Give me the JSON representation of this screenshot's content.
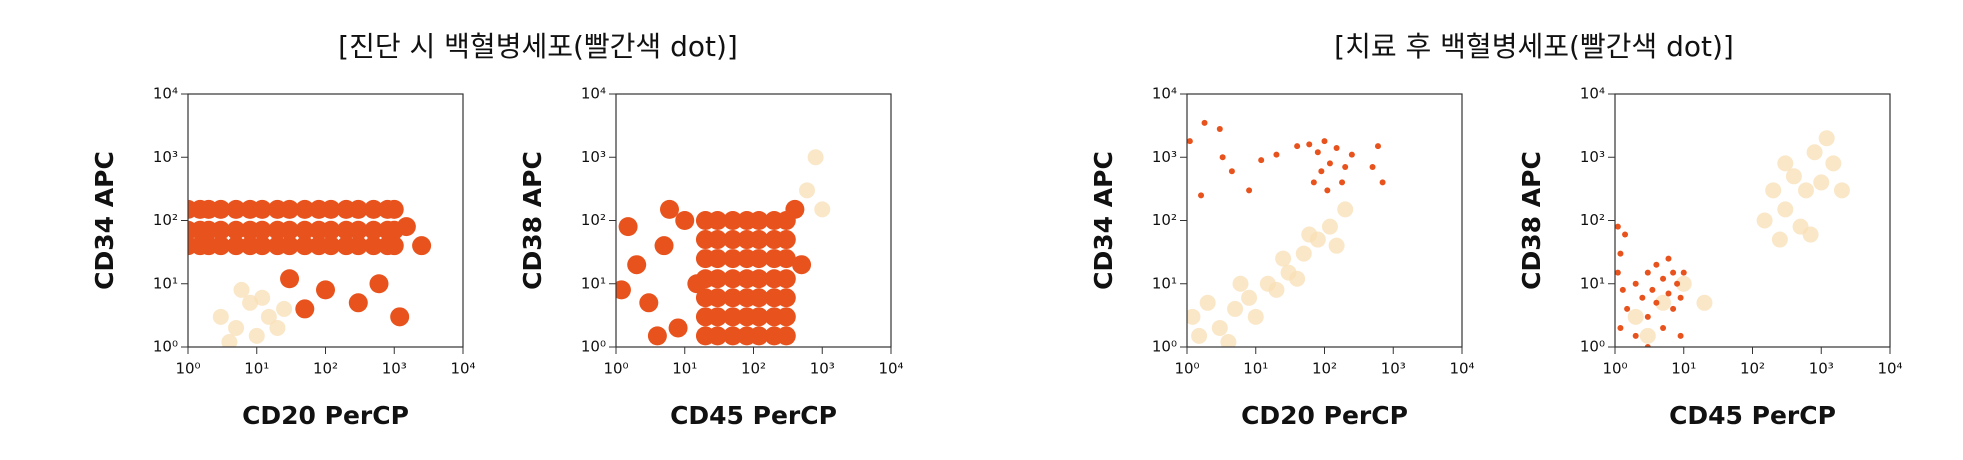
{
  "headings": [
    "[진단 시 백혈병세포(빨간색 dot)]",
    "[치료 후 백혈병세포(빨간색 dot)]"
  ],
  "chart_data": [
    {
      "type": "scatter",
      "xlabel": "CD20 PerCP",
      "ylabel": "CD34 APC",
      "xscale": "log",
      "yscale": "log",
      "xlim": [
        1,
        10000
      ],
      "ylim": [
        1,
        10000
      ],
      "xticks": [
        {
          "value": 1,
          "label": "10⁰"
        },
        {
          "value": 10,
          "label": "10¹"
        },
        {
          "value": 100,
          "label": "10²"
        },
        {
          "value": 1000,
          "label": "10³"
        },
        {
          "value": 10000,
          "label": "10⁴"
        }
      ],
      "yticks": [
        {
          "value": 1,
          "label": "10⁰"
        },
        {
          "value": 10,
          "label": "10¹"
        },
        {
          "value": 100,
          "label": "10²"
        },
        {
          "value": 1000,
          "label": "10³"
        },
        {
          "value": 10000,
          "label": "10⁴"
        }
      ],
      "series": [
        {
          "color": "#f8dfb5",
          "x": [
            3,
            5,
            8,
            10,
            15,
            6,
            20,
            4,
            12,
            25
          ],
          "values": [
            3,
            2,
            5,
            1.5,
            3,
            8,
            2,
            1.2,
            6,
            4
          ]
        },
        {
          "color": "#e8521c",
          "x": [
            1,
            1.5,
            2,
            3,
            5,
            8,
            12,
            20,
            30,
            50,
            80,
            120,
            200,
            300,
            500,
            800,
            1000,
            1,
            1.5,
            2,
            3,
            5,
            8,
            12,
            20,
            30,
            50,
            80,
            120,
            200,
            300,
            500,
            800,
            1000,
            1,
            1.5,
            2,
            3,
            5,
            8,
            12,
            20,
            30,
            50,
            80,
            120,
            200,
            300,
            500,
            800,
            1000,
            1500,
            2500,
            600,
            300,
            100,
            30,
            1200,
            50
          ],
          "values": [
            40,
            40,
            40,
            40,
            40,
            40,
            40,
            40,
            40,
            40,
            40,
            40,
            40,
            40,
            40,
            40,
            40,
            70,
            70,
            70,
            70,
            70,
            70,
            70,
            70,
            70,
            70,
            70,
            70,
            70,
            70,
            70,
            70,
            70,
            150,
            150,
            150,
            150,
            150,
            150,
            150,
            150,
            150,
            150,
            150,
            150,
            150,
            150,
            150,
            150,
            150,
            80,
            40,
            10,
            5,
            8,
            12,
            3,
            4
          ]
        }
      ]
    },
    {
      "type": "scatter",
      "xlabel": "CD45 PerCP",
      "ylabel": "CD38 APC",
      "xscale": "log",
      "yscale": "log",
      "xlim": [
        1,
        10000
      ],
      "ylim": [
        1,
        10000
      ],
      "xticks": [
        {
          "value": 1,
          "label": "10⁰"
        },
        {
          "value": 10,
          "label": "10¹"
        },
        {
          "value": 100,
          "label": "10²"
        },
        {
          "value": 1000,
          "label": "10³"
        },
        {
          "value": 10000,
          "label": "10⁴"
        }
      ],
      "yticks": [
        {
          "value": 1,
          "label": "10⁰"
        },
        {
          "value": 10,
          "label": "10¹"
        },
        {
          "value": 100,
          "label": "10²"
        },
        {
          "value": 1000,
          "label": "10³"
        },
        {
          "value": 10000,
          "label": "10⁴"
        }
      ],
      "series": [
        {
          "color": "#f8dfb5",
          "x": [
            600,
            800,
            1000
          ],
          "values": [
            300,
            1000,
            150
          ]
        },
        {
          "color": "#e8521c",
          "x": [
            20,
            30,
            50,
            80,
            120,
            200,
            300,
            20,
            30,
            50,
            80,
            120,
            200,
            300,
            20,
            30,
            50,
            80,
            120,
            200,
            300,
            20,
            30,
            50,
            80,
            120,
            200,
            300,
            20,
            30,
            50,
            80,
            120,
            200,
            300,
            20,
            30,
            50,
            80,
            120,
            200,
            300,
            20,
            30,
            50,
            80,
            120,
            200,
            300,
            1.5,
            2,
            3,
            5,
            8,
            10,
            15,
            4,
            1.2,
            6,
            400,
            500
          ],
          "values": [
            1.5,
            1.5,
            1.5,
            1.5,
            1.5,
            1.5,
            1.5,
            3,
            3,
            3,
            3,
            3,
            3,
            3,
            6,
            6,
            6,
            6,
            6,
            6,
            6,
            12,
            12,
            12,
            12,
            12,
            12,
            12,
            25,
            25,
            25,
            25,
            25,
            25,
            25,
            50,
            50,
            50,
            50,
            50,
            50,
            50,
            100,
            100,
            100,
            100,
            100,
            100,
            100,
            80,
            20,
            5,
            40,
            2,
            100,
            10,
            1.5,
            8,
            150,
            150,
            20
          ]
        }
      ]
    },
    {
      "type": "scatter",
      "xlabel": "CD20 PerCP",
      "ylabel": "CD34 APC",
      "xscale": "log",
      "yscale": "log",
      "xlim": [
        1,
        10000
      ],
      "ylim": [
        1,
        10000
      ],
      "xticks": [
        {
          "value": 1,
          "label": "10⁰"
        },
        {
          "value": 10,
          "label": "10¹"
        },
        {
          "value": 100,
          "label": "10²"
        },
        {
          "value": 1000,
          "label": "10³"
        },
        {
          "value": 10000,
          "label": "10⁴"
        }
      ],
      "yticks": [
        {
          "value": 1,
          "label": "10⁰"
        },
        {
          "value": 10,
          "label": "10¹"
        },
        {
          "value": 100,
          "label": "10²"
        },
        {
          "value": 1000,
          "label": "10³"
        },
        {
          "value": 10000,
          "label": "10⁴"
        }
      ],
      "series": [
        {
          "color": "#f8dfb5",
          "x": [
            1.5,
            3,
            5,
            8,
            10,
            15,
            20,
            30,
            50,
            80,
            120,
            200,
            2,
            1.2,
            4,
            25,
            40,
            6,
            60,
            150
          ],
          "values": [
            1.5,
            2,
            4,
            6,
            3,
            10,
            8,
            15,
            30,
            50,
            80,
            150,
            5,
            3,
            1.2,
            25,
            12,
            10,
            60,
            40
          ]
        },
        {
          "color": "#e8521c",
          "x": [
            1.1,
            1.8,
            3,
            4.5,
            3.3,
            1.6,
            8,
            12,
            20,
            40,
            60,
            80,
            100,
            150,
            90,
            120,
            200,
            250,
            70,
            110,
            600,
            500,
            700,
            180
          ],
          "values": [
            1800,
            3500,
            2800,
            600,
            1000,
            250,
            300,
            900,
            1100,
            1500,
            1600,
            1200,
            1800,
            1400,
            600,
            800,
            700,
            1100,
            400,
            300,
            1500,
            700,
            400,
            400
          ]
        }
      ]
    },
    {
      "type": "scatter",
      "xlabel": "CD45 PerCP",
      "ylabel": "CD38 APC",
      "xscale": "log",
      "yscale": "log",
      "xlim": [
        1,
        10000
      ],
      "ylim": [
        1,
        10000
      ],
      "xticks": [
        {
          "value": 1,
          "label": "10⁰"
        },
        {
          "value": 10,
          "label": "10¹"
        },
        {
          "value": 100,
          "label": "10²"
        },
        {
          "value": 1000,
          "label": "10³"
        },
        {
          "value": 10000,
          "label": "10⁴"
        }
      ],
      "yticks": [
        {
          "value": 1,
          "label": "10⁰"
        },
        {
          "value": 10,
          "label": "10¹"
        },
        {
          "value": 100,
          "label": "10²"
        },
        {
          "value": 1000,
          "label": "10³"
        },
        {
          "value": 10000,
          "label": "10⁴"
        }
      ],
      "series": [
        {
          "color": "#f8dfb5",
          "x": [
            150,
            200,
            300,
            400,
            500,
            600,
            800,
            1000,
            1500,
            700,
            250,
            1200,
            300,
            2000,
            2,
            5,
            10,
            20,
            3
          ],
          "values": [
            100,
            300,
            150,
            500,
            80,
            300,
            1200,
            400,
            800,
            60,
            50,
            2000,
            800,
            300,
            3,
            5,
            10,
            5,
            1.5
          ]
        },
        {
          "color": "#e8521c",
          "x": [
            1.1,
            1.2,
            1.1,
            1.3,
            1.5,
            1.2,
            2,
            2.5,
            3,
            3,
            3.5,
            4,
            4,
            5,
            5,
            6,
            7,
            7,
            8,
            9,
            9,
            2,
            6,
            10,
            1.4,
            3
          ],
          "values": [
            80,
            30,
            15,
            8,
            4,
            2,
            10,
            6,
            15,
            3,
            8,
            20,
            5,
            12,
            2,
            7,
            15,
            4,
            10,
            6,
            1.5,
            1.5,
            25,
            15,
            60,
            1
          ]
        }
      ]
    }
  ]
}
